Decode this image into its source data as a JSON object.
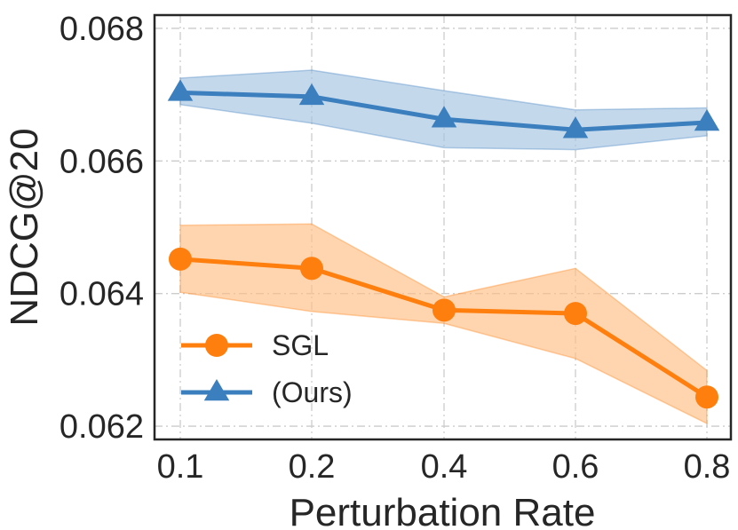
{
  "chart_data": {
    "type": "line",
    "title": "",
    "xlabel": "Perturbation Rate",
    "ylabel": "NDCG@20",
    "categories": [
      "0.1",
      "0.2",
      "0.4",
      "0.6",
      "0.8"
    ],
    "x": [
      0.1,
      0.2,
      0.4,
      0.6,
      0.8
    ],
    "xlim": [
      0.0,
      0.8
    ],
    "ylim": [
      0.0618,
      0.0682
    ],
    "yticks": [
      0.062,
      0.064,
      0.066,
      0.068
    ],
    "ytick_labels": [
      "0.062",
      "0.064",
      "0.066",
      "0.068"
    ],
    "grid": true,
    "legend_position": "lower-left",
    "series": [
      {
        "name": "SGL",
        "color": "#ff7f0e",
        "band_color": "#ffbe86",
        "marker": "circle",
        "values": [
          0.06452,
          0.06438,
          0.06375,
          0.0637,
          0.06244
        ],
        "lower": [
          0.06402,
          0.06373,
          0.06355,
          0.06302,
          0.06204
        ],
        "upper": [
          0.06503,
          0.06505,
          0.06395,
          0.06438,
          0.06284
        ]
      },
      {
        "name": "(Ours)",
        "color": "#3b7fbe",
        "band_color": "#a4c3e2",
        "marker": "triangle",
        "values": [
          0.06703,
          0.06697,
          0.06663,
          0.06647,
          0.06658
        ],
        "lower": [
          0.06685,
          0.06657,
          0.0662,
          0.06617,
          0.06638
        ],
        "upper": [
          0.06725,
          0.06737,
          0.06706,
          0.06677,
          0.0668
        ]
      }
    ]
  }
}
